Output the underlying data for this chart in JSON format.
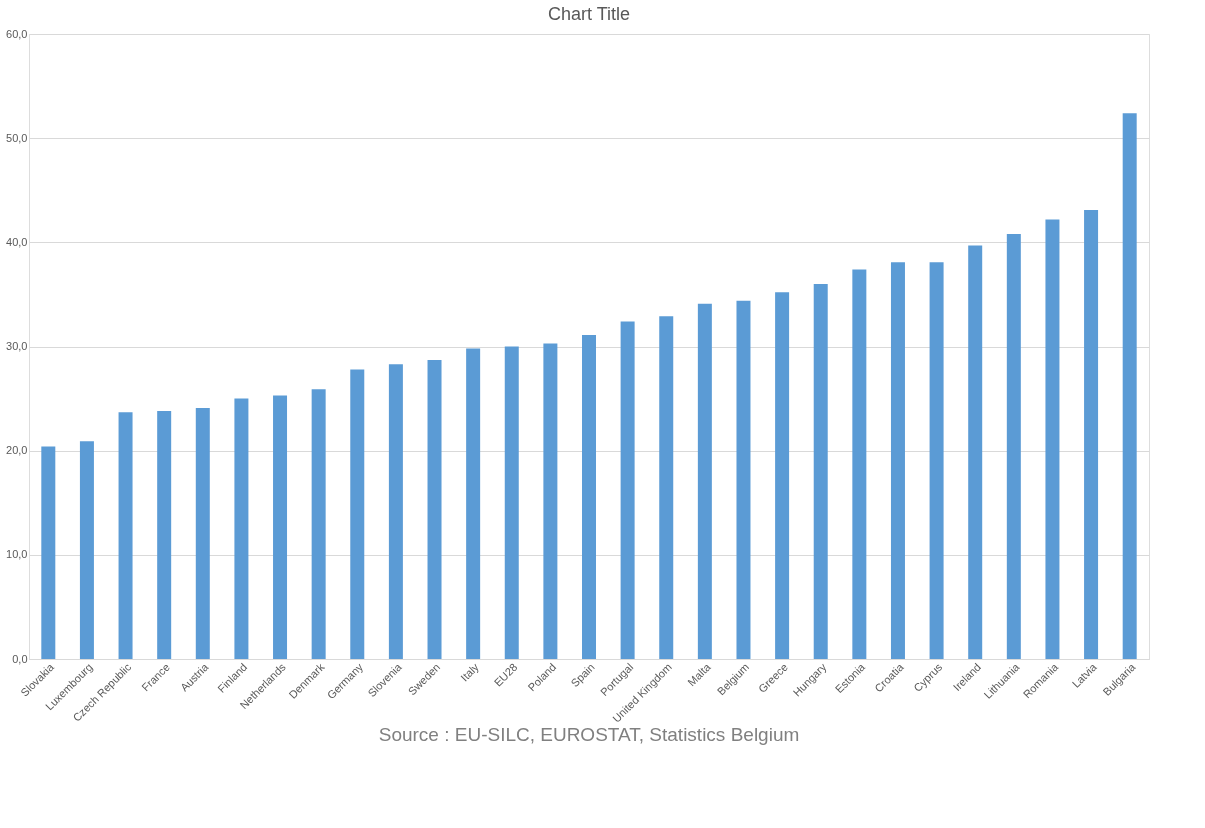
{
  "chart_data": {
    "type": "bar",
    "title": "Chart Title",
    "categories": [
      "Slovakia",
      "Luxembourg",
      "Czech Republic",
      "France",
      "Austria",
      "Finland",
      "Netherlands",
      "Denmark",
      "Germany",
      "Slovenia",
      "Sweden",
      "Italy",
      "EU28",
      "Poland",
      "Spain",
      "Portugal",
      "United Kingdom",
      "Malta",
      "Belgium",
      "Greece",
      "Hungary",
      "Estonia",
      "Croatia",
      "Cyprus",
      "Ireland",
      "Lithuania",
      "Romania",
      "Latvia",
      "Bulgaria"
    ],
    "values": [
      20.4,
      20.9,
      23.7,
      23.8,
      24.1,
      25.0,
      25.3,
      25.9,
      27.8,
      28.3,
      28.7,
      29.8,
      30.0,
      30.3,
      31.1,
      32.4,
      32.9,
      34.1,
      34.4,
      35.2,
      36.0,
      37.4,
      38.1,
      38.1,
      39.7,
      40.8,
      42.2,
      43.1,
      52.4
    ],
    "color": "#5b9bd5",
    "ylim": [
      0,
      60
    ],
    "yticks": [
      {
        "value": 0,
        "label": "0,0"
      },
      {
        "value": 10,
        "label": "10,0"
      },
      {
        "value": 20,
        "label": "20,0"
      },
      {
        "value": 30,
        "label": "30,0"
      },
      {
        "value": 40,
        "label": "40,0"
      },
      {
        "value": 50,
        "label": "50,0"
      },
      {
        "value": 60,
        "label": "60,0"
      }
    ],
    "grid": "y",
    "annotations": [
      "Source : EU-SILC, EUROSTAT, Statistics Belgium"
    ]
  }
}
